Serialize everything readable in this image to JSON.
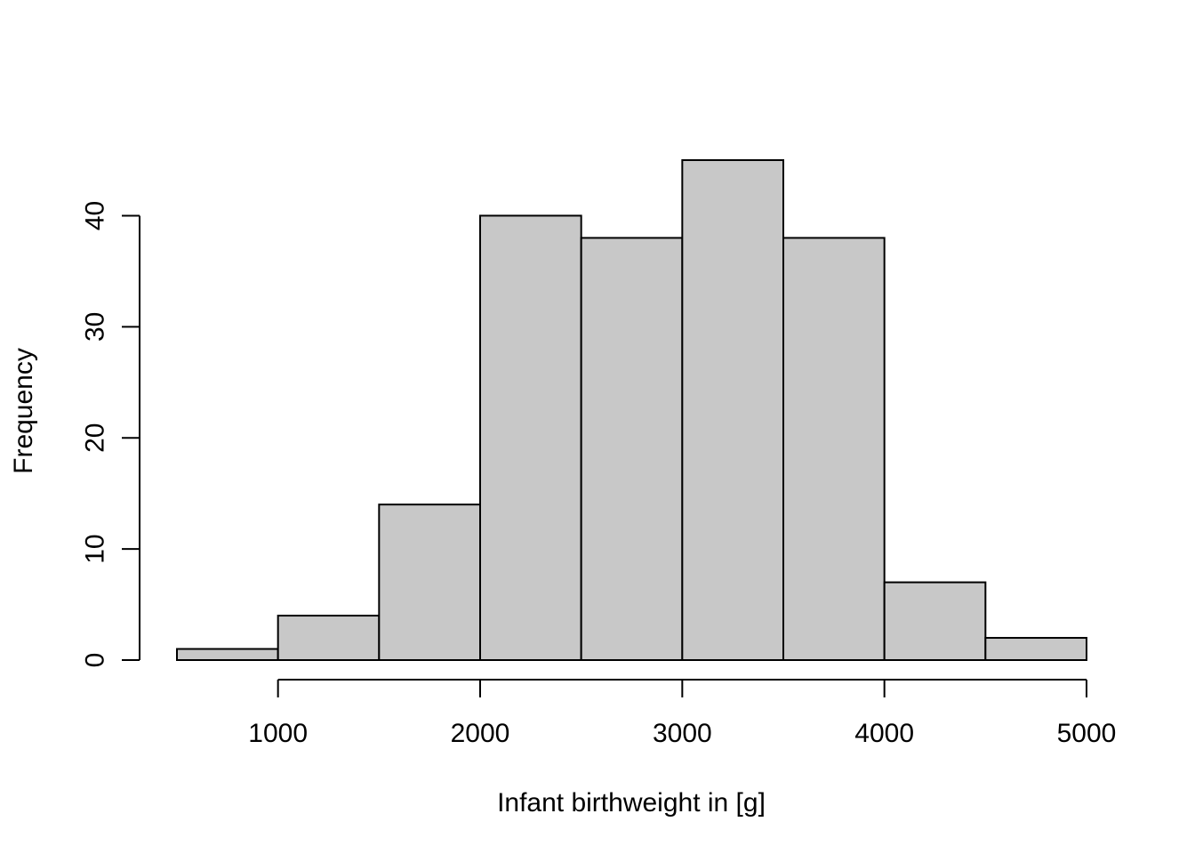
{
  "chart_data": {
    "type": "bar",
    "title": "",
    "xlabel": "Infant birthweight in [g]",
    "ylabel": "Frequency",
    "bin_edges": [
      500,
      1000,
      1500,
      2000,
      2500,
      3000,
      3500,
      4000,
      4500,
      5000
    ],
    "values": [
      1,
      4,
      14,
      40,
      38,
      45,
      38,
      7,
      2
    ],
    "xlim": [
      500,
      5000
    ],
    "ylim": [
      0,
      45
    ],
    "x_ticks": [
      1000,
      2000,
      3000,
      4000,
      5000
    ],
    "y_ticks": [
      0,
      10,
      20,
      30,
      40
    ],
    "bar_color": "#c8c8c8",
    "edge_color": "#000000",
    "grid": false
  }
}
